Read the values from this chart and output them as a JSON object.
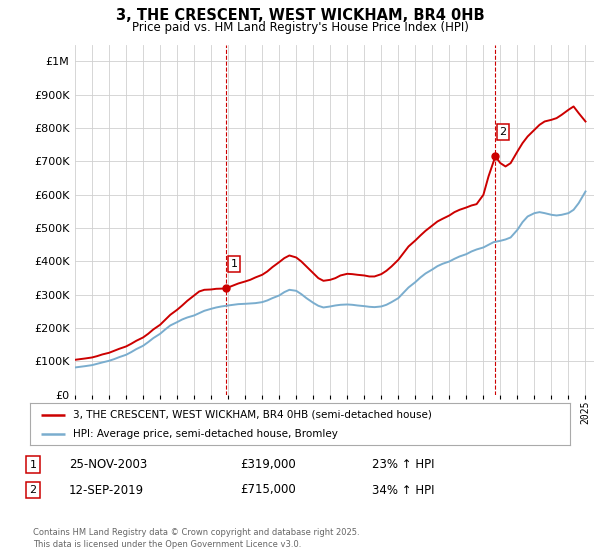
{
  "title": "3, THE CRESCENT, WEST WICKHAM, BR4 0HB",
  "subtitle": "Price paid vs. HM Land Registry's House Price Index (HPI)",
  "legend_line1": "3, THE CRESCENT, WEST WICKHAM, BR4 0HB (semi-detached house)",
  "legend_line2": "HPI: Average price, semi-detached house, Bromley",
  "annotation1_date": "25-NOV-2003",
  "annotation1_price": "£319,000",
  "annotation1_hpi": "23% ↑ HPI",
  "annotation1_year": 2003.9,
  "annotation1_value": 319000,
  "annotation2_date": "12-SEP-2019",
  "annotation2_price": "£715,000",
  "annotation2_hpi": "34% ↑ HPI",
  "annotation2_year": 2019.7,
  "annotation2_value": 715000,
  "red_line_color": "#cc0000",
  "blue_line_color": "#7aadce",
  "grid_color": "#d0d0d0",
  "background_color": "#ffffff",
  "footer": "Contains HM Land Registry data © Crown copyright and database right 2025.\nThis data is licensed under the Open Government Licence v3.0.",
  "ylim": [
    0,
    1050000
  ],
  "yticks": [
    0,
    100000,
    200000,
    300000,
    400000,
    500000,
    600000,
    700000,
    800000,
    900000,
    1000000
  ],
  "red_x": [
    1995.0,
    1995.3,
    1995.6,
    1996.0,
    1996.3,
    1996.6,
    1997.0,
    1997.3,
    1997.6,
    1998.0,
    1998.3,
    1998.6,
    1999.0,
    1999.3,
    1999.6,
    2000.0,
    2000.3,
    2000.6,
    2001.0,
    2001.3,
    2001.6,
    2002.0,
    2002.3,
    2002.6,
    2003.0,
    2003.3,
    2003.9,
    2004.0,
    2004.3,
    2004.6,
    2005.0,
    2005.3,
    2005.6,
    2006.0,
    2006.3,
    2006.6,
    2007.0,
    2007.3,
    2007.6,
    2008.0,
    2008.3,
    2008.6,
    2009.0,
    2009.3,
    2009.6,
    2010.0,
    2010.3,
    2010.6,
    2011.0,
    2011.3,
    2011.6,
    2012.0,
    2012.3,
    2012.6,
    2013.0,
    2013.3,
    2013.6,
    2014.0,
    2014.3,
    2014.6,
    2015.0,
    2015.3,
    2015.6,
    2016.0,
    2016.3,
    2016.6,
    2017.0,
    2017.3,
    2017.6,
    2018.0,
    2018.3,
    2018.6,
    2019.0,
    2019.3,
    2019.7,
    2020.0,
    2020.3,
    2020.6,
    2021.0,
    2021.3,
    2021.6,
    2022.0,
    2022.3,
    2022.6,
    2023.0,
    2023.3,
    2023.6,
    2024.0,
    2024.3,
    2024.6,
    2025.0
  ],
  "red_y": [
    105000,
    107000,
    109000,
    112000,
    116000,
    121000,
    126000,
    132000,
    138000,
    145000,
    153000,
    162000,
    172000,
    183000,
    196000,
    210000,
    225000,
    240000,
    255000,
    268000,
    282000,
    298000,
    310000,
    315000,
    316000,
    318000,
    319000,
    322000,
    328000,
    334000,
    340000,
    345000,
    352000,
    360000,
    370000,
    383000,
    398000,
    410000,
    418000,
    412000,
    400000,
    385000,
    365000,
    350000,
    342000,
    345000,
    350000,
    358000,
    363000,
    362000,
    360000,
    358000,
    355000,
    355000,
    362000,
    372000,
    385000,
    405000,
    425000,
    445000,
    463000,
    478000,
    492000,
    508000,
    520000,
    528000,
    538000,
    548000,
    555000,
    562000,
    568000,
    572000,
    600000,
    655000,
    715000,
    695000,
    685000,
    695000,
    730000,
    755000,
    775000,
    795000,
    810000,
    820000,
    825000,
    830000,
    840000,
    855000,
    865000,
    845000,
    820000
  ],
  "blue_x": [
    1995.0,
    1995.3,
    1995.6,
    1996.0,
    1996.3,
    1996.6,
    1997.0,
    1997.3,
    1997.6,
    1998.0,
    1998.3,
    1998.6,
    1999.0,
    1999.3,
    1999.6,
    2000.0,
    2000.3,
    2000.6,
    2001.0,
    2001.3,
    2001.6,
    2002.0,
    2002.3,
    2002.6,
    2003.0,
    2003.3,
    2003.6,
    2004.0,
    2004.3,
    2004.6,
    2005.0,
    2005.3,
    2005.6,
    2006.0,
    2006.3,
    2006.6,
    2007.0,
    2007.3,
    2007.6,
    2008.0,
    2008.3,
    2008.6,
    2009.0,
    2009.3,
    2009.6,
    2010.0,
    2010.3,
    2010.6,
    2011.0,
    2011.3,
    2011.6,
    2012.0,
    2012.3,
    2012.6,
    2013.0,
    2013.3,
    2013.6,
    2014.0,
    2014.3,
    2014.6,
    2015.0,
    2015.3,
    2015.6,
    2016.0,
    2016.3,
    2016.6,
    2017.0,
    2017.3,
    2017.6,
    2018.0,
    2018.3,
    2018.6,
    2019.0,
    2019.3,
    2019.6,
    2020.0,
    2020.3,
    2020.6,
    2021.0,
    2021.3,
    2021.6,
    2022.0,
    2022.3,
    2022.6,
    2023.0,
    2023.3,
    2023.6,
    2024.0,
    2024.3,
    2024.6,
    2025.0
  ],
  "blue_y": [
    82000,
    84000,
    86000,
    89000,
    93000,
    97000,
    102000,
    107000,
    113000,
    120000,
    128000,
    137000,
    147000,
    158000,
    170000,
    183000,
    196000,
    208000,
    218000,
    226000,
    232000,
    238000,
    245000,
    252000,
    258000,
    262000,
    265000,
    268000,
    270000,
    272000,
    273000,
    274000,
    275000,
    278000,
    283000,
    290000,
    298000,
    308000,
    315000,
    312000,
    302000,
    290000,
    276000,
    267000,
    262000,
    265000,
    268000,
    270000,
    271000,
    270000,
    268000,
    266000,
    264000,
    263000,
    265000,
    270000,
    278000,
    290000,
    306000,
    322000,
    338000,
    352000,
    364000,
    376000,
    386000,
    393000,
    400000,
    408000,
    415000,
    422000,
    430000,
    436000,
    442000,
    450000,
    458000,
    462000,
    466000,
    472000,
    495000,
    518000,
    535000,
    545000,
    548000,
    545000,
    540000,
    538000,
    540000,
    545000,
    555000,
    575000,
    610000
  ]
}
